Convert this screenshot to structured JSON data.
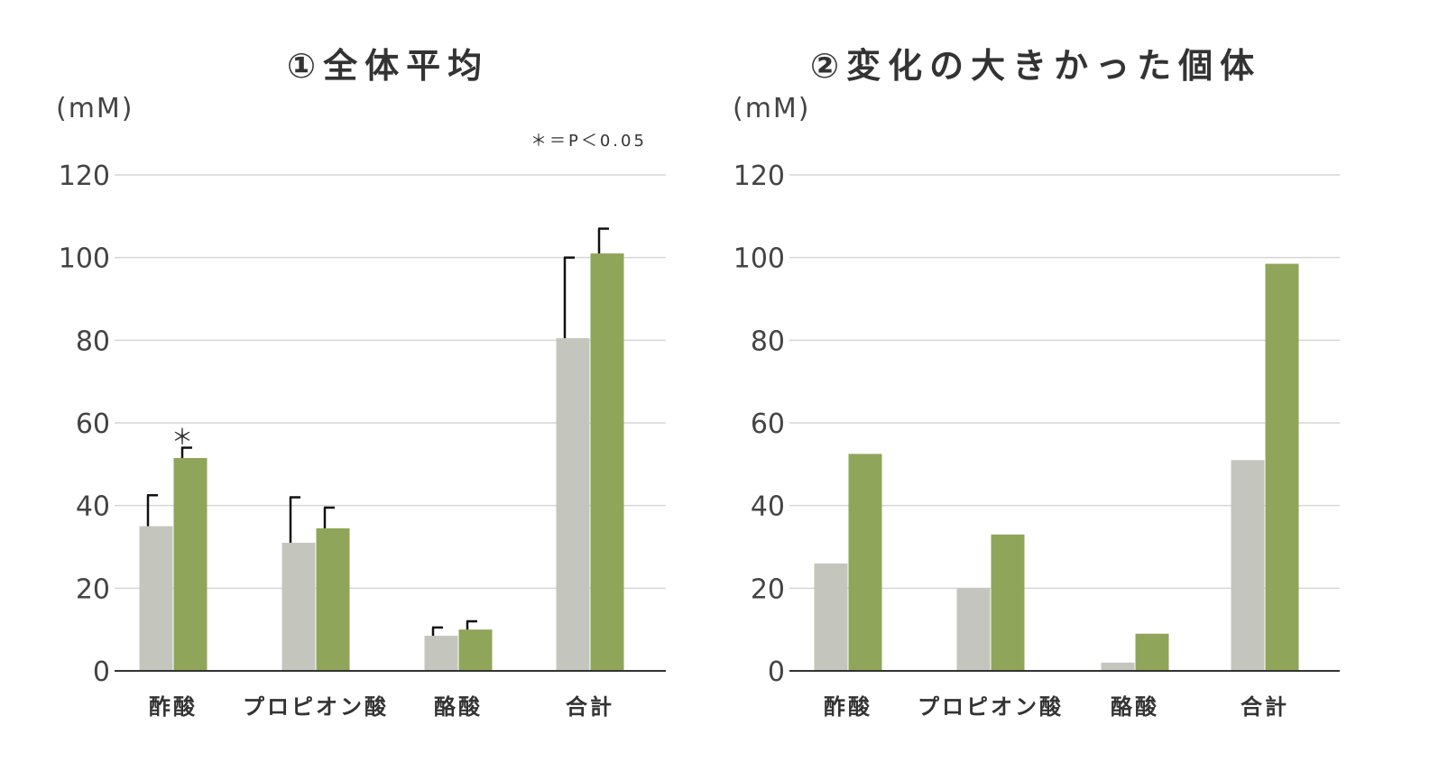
{
  "chart_data": [
    {
      "type": "bar",
      "title": "①全体平均",
      "ylabel": "(mM)",
      "note": "＊＝P＜0.05",
      "categories": [
        "酢酸",
        "プロピオン酸",
        "酪酸",
        "合計"
      ],
      "ylim": [
        0,
        120
      ],
      "yticks": [
        0,
        20,
        40,
        60,
        80,
        100,
        120
      ],
      "grid": true,
      "series": [
        {
          "values": [
            35,
            31,
            8.5,
            80.5
          ],
          "errors": [
            7.5,
            11,
            2,
            19.5
          ],
          "color": "#c4c5bd"
        },
        {
          "values": [
            51.5,
            34.5,
            10,
            101
          ],
          "errors": [
            2.5,
            5,
            2,
            6
          ],
          "color": "#8fa55a"
        }
      ],
      "annotations": [
        {
          "category_index": 0,
          "series_index": 1,
          "text": "＊"
        }
      ]
    },
    {
      "type": "bar",
      "title": "②変化の大きかった個体",
      "ylabel": "(mM)",
      "categories": [
        "酢酸",
        "プロピオン酸",
        "酪酸",
        "合計"
      ],
      "ylim": [
        0,
        120
      ],
      "yticks": [
        0,
        20,
        40,
        60,
        80,
        100,
        120
      ],
      "grid": true,
      "series": [
        {
          "values": [
            26,
            20,
            2,
            51
          ],
          "color": "#c4c5bd"
        },
        {
          "values": [
            52.5,
            33,
            9,
            98.5
          ],
          "color": "#8fa55a"
        }
      ]
    }
  ]
}
